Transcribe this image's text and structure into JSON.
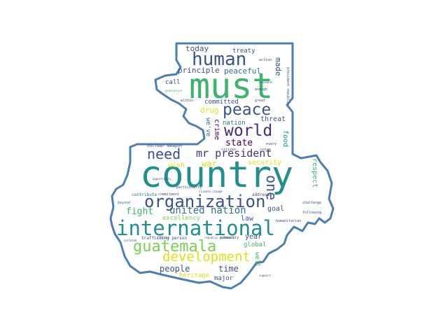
{
  "palette": {
    "outline": "#4a7fb0",
    "green": "#3db46d",
    "teal": "#21908d",
    "darkblue": "#3b528b",
    "purple": "#472d7b",
    "violet": "#440154",
    "yellow": "#dde318",
    "lime": "#7ad151",
    "midteal": "#2c728e"
  },
  "words": {
    "country": "country",
    "must": "must",
    "international": "international",
    "organization": "organization",
    "human": "human",
    "peace": "peace",
    "world": "world",
    "guatemala": "guatemala",
    "development": "development",
    "united_nation": "united nation",
    "need": "need",
    "mr_president": "mr president",
    "one": "one",
    "state": "state",
    "fight": "fight",
    "people": "people",
    "time": "time",
    "today": "today",
    "principle": "principle",
    "peaceful": "peaceful",
    "treaty": "treaty",
    "made": "made",
    "drug": "drug",
    "committed": "committed",
    "nation": "nation",
    "threat": "threat",
    "crime": "crime",
    "we_ve": "we've",
    "food": "food",
    "war": "war",
    "wish": "wish",
    "security": "security",
    "respect": "respect",
    "goal": "goal",
    "law": "law",
    "year": "year",
    "global": "global",
    "excellency": "excellency",
    "heritage": "heritage",
    "major": "major",
    "call": "call",
    "nuclear_weapon": "nuclear weapon",
    "address": "address",
    "trafficking_person": "trafficking person",
    "contribute": "contribute",
    "commitment": "commitment",
    "every": "every",
    "voice": "voice",
    "community": "community",
    "following": "following",
    "beyond": "beyond",
    "particularly": "particularly",
    "republic_guatemala": "republic guatemala",
    "action": "action",
    "enough": "enough",
    "citizen": "citizen",
    "crisis": "crisis",
    "challenge": "challenge",
    "opportunity": "opportunity",
    "president_republic": "president republic",
    "humanitarian": "humanitarian",
    "climate_change": "climate change",
    "well": "well",
    "within": "within",
    "great": "great",
    "generation": "generation",
    "isolated": "isolated",
    "covenant": "covenant",
    "support": "support"
  }
}
